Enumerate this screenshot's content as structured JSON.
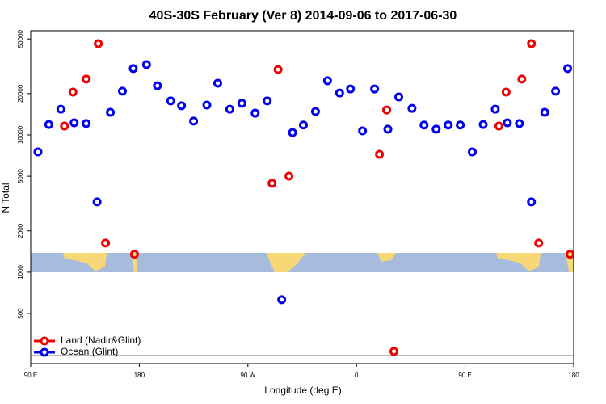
{
  "chart_data": {
    "type": "scatter",
    "title": "40S-30S February (Ver 8)   2014-09-06 to 2017-06-30",
    "xlabel": "Longitude (deg E)",
    "ylabel": "N Total",
    "xlim": [
      90,
      540
    ],
    "xticks": [
      {
        "value": 90,
        "label": "90 E"
      },
      180,
      {
        "value": 270,
        "label": "90 W"
      },
      {
        "value": 360,
        "label": "0"
      },
      {
        "value": 450,
        "label": "90 E"
      },
      {
        "value": 540,
        "label": "180"
      }
    ],
    "ylim": [
      216,
      57400
    ],
    "yticks": [
      500,
      1000,
      2000,
      5000,
      10000,
      20000,
      50000
    ],
    "log_y": true,
    "legend": "lower left",
    "series": [
      {
        "name": "Land (Nadir&Glint)",
        "color": "#ee0000",
        "x": [
          118,
          125,
          136,
          146,
          152,
          176,
          290,
          295,
          304,
          379,
          385,
          391,
          478,
          484,
          497,
          505,
          511,
          537
        ],
        "values": [
          11600,
          20500,
          25500,
          46200,
          1630,
          1350,
          4440,
          29900,
          5010,
          7220,
          15200,
          265,
          11600,
          20500,
          25500,
          46200,
          1630,
          1350
        ]
      },
      {
        "name": "Ocean (Glint)",
        "color": "#0000ee",
        "x": [
          96,
          105,
          115,
          126,
          136,
          145,
          156,
          166,
          175,
          186,
          195,
          206,
          215,
          225,
          236,
          245,
          255,
          265,
          276,
          286,
          298,
          307,
          316,
          326,
          336,
          346,
          355,
          365,
          375,
          386,
          395,
          406,
          416,
          426,
          436,
          446,
          456,
          465,
          475,
          485,
          495,
          505,
          516,
          525,
          535
        ],
        "values": [
          7520,
          11900,
          15400,
          12250,
          12100,
          3250,
          14600,
          20800,
          30400,
          32500,
          22800,
          17700,
          16300,
          12600,
          16500,
          23800,
          15400,
          17000,
          14400,
          17700,
          631,
          10400,
          11800,
          14800,
          24800,
          20200,
          21600,
          10700,
          21600,
          11000,
          18900,
          15600,
          11800,
          11000,
          11800,
          11800,
          7520,
          11900,
          15400,
          12250,
          12100,
          3250,
          14600,
          20800,
          30400
        ]
      }
    ]
  }
}
